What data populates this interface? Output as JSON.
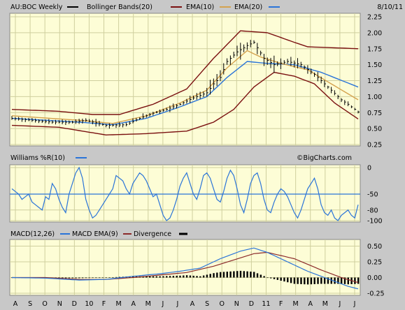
{
  "colors": {
    "background": "#c8c8c8",
    "panel": "#fdfdd6",
    "grid": "#cfcf9e",
    "price": "#000000",
    "bollinger": "#7a1010",
    "ema10": "#d4a24e",
    "ema20": "#2a74d8",
    "williams": "#2a74d8",
    "macd": "#2a74d8",
    "macd_ema": "#8b2a2a",
    "divergence": "#000000"
  },
  "header": {
    "symbol": "AU:BOC Weekly",
    "date": "8/10/11",
    "watermark": "©BigCharts.com"
  },
  "x_axis": {
    "labels": [
      "A",
      "S",
      "O",
      "N",
      "D",
      "10",
      "F",
      "M",
      "A",
      "M",
      "J",
      "J",
      "A",
      "S",
      "O",
      "N",
      "D",
      "11",
      "F",
      "M",
      "A",
      "M",
      "J",
      "J"
    ]
  },
  "chart_data": [
    {
      "type": "line",
      "panel": "price",
      "legend": [
        "AU:BOC Weekly",
        "Bollinger Bands(20)",
        "EMA(10)",
        "EMA(20)"
      ],
      "legend_placement": "top-left",
      "yticks": [
        2.25,
        2.0,
        1.75,
        1.5,
        1.25,
        1.0,
        0.75,
        0.5,
        0.25
      ],
      "ylim": [
        0.25,
        2.25
      ],
      "grid": true,
      "x_weeks": 104,
      "price_anchors": [
        [
          0,
          0.66
        ],
        [
          6,
          0.63
        ],
        [
          12,
          0.6
        ],
        [
          18,
          0.6
        ],
        [
          22,
          0.63
        ],
        [
          28,
          0.55
        ],
        [
          34,
          0.56
        ],
        [
          38,
          0.66
        ],
        [
          42,
          0.74
        ],
        [
          46,
          0.8
        ],
        [
          50,
          0.88
        ],
        [
          54,
          0.98
        ],
        [
          58,
          1.06
        ],
        [
          60,
          1.2
        ],
        [
          62,
          1.3
        ],
        [
          64,
          1.55
        ],
        [
          67,
          1.7
        ],
        [
          70,
          1.8
        ],
        [
          72,
          1.85
        ],
        [
          75,
          1.6
        ],
        [
          78,
          1.5
        ],
        [
          82,
          1.55
        ],
        [
          86,
          1.5
        ],
        [
          90,
          1.35
        ],
        [
          94,
          1.15
        ],
        [
          98,
          0.95
        ],
        [
          100,
          0.88
        ],
        [
          103,
          0.76
        ]
      ],
      "ema10_anchors": [
        [
          0,
          0.7
        ],
        [
          20,
          0.63
        ],
        [
          30,
          0.58
        ],
        [
          40,
          0.7
        ],
        [
          50,
          0.9
        ],
        [
          58,
          1.1
        ],
        [
          64,
          1.45
        ],
        [
          70,
          1.72
        ],
        [
          74,
          1.62
        ],
        [
          80,
          1.52
        ],
        [
          88,
          1.42
        ],
        [
          95,
          1.2
        ],
        [
          103,
          0.95
        ]
      ],
      "ema20_anchors": [
        [
          0,
          0.66
        ],
        [
          20,
          0.6
        ],
        [
          30,
          0.56
        ],
        [
          40,
          0.66
        ],
        [
          50,
          0.84
        ],
        [
          58,
          1.0
        ],
        [
          64,
          1.3
        ],
        [
          70,
          1.55
        ],
        [
          76,
          1.52
        ],
        [
          84,
          1.5
        ],
        [
          92,
          1.38
        ],
        [
          103,
          1.15
        ]
      ],
      "bb_upper_anchors": [
        [
          0,
          0.8
        ],
        [
          14,
          0.77
        ],
        [
          24,
          0.72
        ],
        [
          32,
          0.72
        ],
        [
          42,
          0.88
        ],
        [
          52,
          1.12
        ],
        [
          60,
          1.6
        ],
        [
          68,
          2.03
        ],
        [
          76,
          2.0
        ],
        [
          84,
          1.85
        ],
        [
          88,
          1.78
        ],
        [
          103,
          1.75
        ]
      ],
      "bb_lower_anchors": [
        [
          0,
          0.55
        ],
        [
          14,
          0.52
        ],
        [
          28,
          0.4
        ],
        [
          40,
          0.42
        ],
        [
          52,
          0.46
        ],
        [
          60,
          0.6
        ],
        [
          66,
          0.8
        ],
        [
          72,
          1.15
        ],
        [
          78,
          1.38
        ],
        [
          84,
          1.32
        ],
        [
          90,
          1.2
        ],
        [
          96,
          0.9
        ],
        [
          103,
          0.65
        ]
      ]
    },
    {
      "type": "line",
      "panel": "williams",
      "legend": [
        "Williams %R(10)"
      ],
      "legend_placement": "top-left",
      "yticks": [
        0,
        -50,
        -80,
        -100
      ],
      "ylim": [
        -100,
        0
      ],
      "reference_line": -50,
      "grid": true,
      "values": [
        -40,
        -45,
        -50,
        -60,
        -55,
        -50,
        -65,
        -70,
        -75,
        -80,
        -55,
        -60,
        -30,
        -40,
        -60,
        -75,
        -85,
        -50,
        -30,
        -10,
        0,
        -20,
        -60,
        -80,
        -95,
        -90,
        -80,
        -70,
        -60,
        -50,
        -40,
        -15,
        -20,
        -25,
        -40,
        -50,
        -30,
        -20,
        -10,
        -15,
        -25,
        -40,
        -55,
        -50,
        -70,
        -90,
        -100,
        -95,
        -80,
        -60,
        -35,
        -20,
        -10,
        -30,
        -50,
        -60,
        -40,
        -15,
        -10,
        -20,
        -40,
        -60,
        -65,
        -45,
        -20,
        -5,
        -15,
        -40,
        -70,
        -85,
        -60,
        -30,
        -15,
        -10,
        -30,
        -60,
        -80,
        -85,
        -65,
        -50,
        -40,
        -45,
        -55,
        -70,
        -85,
        -95,
        -80,
        -60,
        -40,
        -30,
        -20,
        -40,
        -70,
        -85,
        -90,
        -80,
        -95,
        -100,
        -90,
        -85,
        -80,
        -90,
        -95,
        -70
      ]
    },
    {
      "type": "line",
      "panel": "macd",
      "legend": [
        "MACD(12,26)",
        "MACD EMA(9)",
        "Divergence"
      ],
      "legend_placement": "top-left",
      "yticks": [
        0.5,
        0.25,
        0.0,
        -0.25
      ],
      "ylim": [
        -0.25,
        0.55
      ],
      "grid": true,
      "macd_anchors": [
        [
          0,
          0.0
        ],
        [
          10,
          -0.01
        ],
        [
          20,
          -0.04
        ],
        [
          28,
          -0.03
        ],
        [
          36,
          0.02
        ],
        [
          44,
          0.06
        ],
        [
          50,
          0.1
        ],
        [
          56,
          0.15
        ],
        [
          62,
          0.3
        ],
        [
          68,
          0.42
        ],
        [
          72,
          0.47
        ],
        [
          76,
          0.4
        ],
        [
          82,
          0.25
        ],
        [
          88,
          0.1
        ],
        [
          94,
          -0.02
        ],
        [
          100,
          -0.14
        ],
        [
          103,
          -0.18
        ]
      ],
      "signal_anchors": [
        [
          0,
          0.0
        ],
        [
          10,
          0.0
        ],
        [
          20,
          -0.03
        ],
        [
          28,
          -0.03
        ],
        [
          36,
          0.0
        ],
        [
          44,
          0.04
        ],
        [
          52,
          0.08
        ],
        [
          60,
          0.18
        ],
        [
          66,
          0.28
        ],
        [
          72,
          0.38
        ],
        [
          76,
          0.4
        ],
        [
          84,
          0.3
        ],
        [
          92,
          0.12
        ],
        [
          98,
          0.0
        ],
        [
          103,
          -0.08
        ]
      ],
      "divergence_note": "bars = macd - signal"
    }
  ]
}
